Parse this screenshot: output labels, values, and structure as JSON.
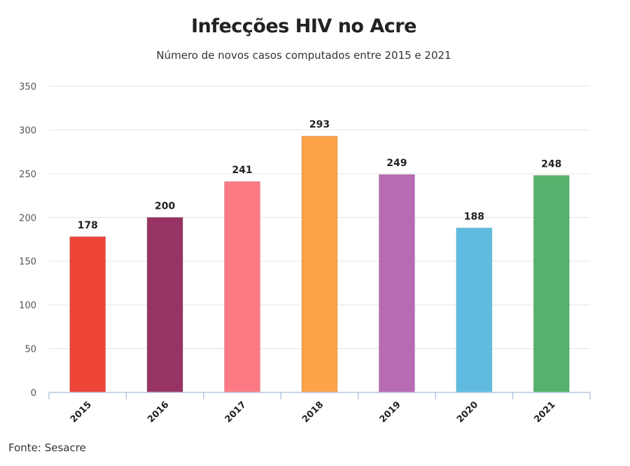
{
  "chart_data": {
    "type": "bar",
    "title": "Infecções HIV no Acre",
    "subtitle": "Número de novos casos computados entre 2015 e 2021",
    "categories": [
      "2015",
      "2016",
      "2017",
      "2018",
      "2019",
      "2020",
      "2021"
    ],
    "values": [
      178,
      200,
      241,
      293,
      249,
      188,
      248
    ],
    "colors": [
      "#ee4539",
      "#983463",
      "#fd7a84",
      "#fda34a",
      "#b76bb3",
      "#5fbce0",
      "#56b26c"
    ],
    "ylim": [
      0,
      350
    ],
    "yticks": [
      0,
      50,
      100,
      150,
      200,
      250,
      300,
      350
    ],
    "xlabel": "",
    "ylabel": "",
    "grid": true,
    "legend": "none"
  },
  "source": "Fonte: Sesacre"
}
